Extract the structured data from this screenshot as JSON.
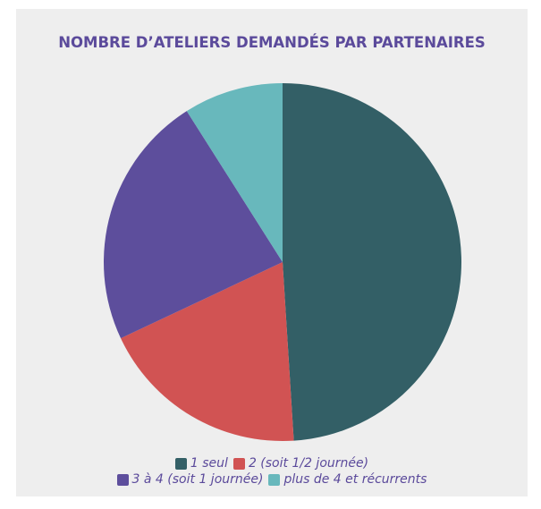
{
  "chart_data": {
    "type": "pie",
    "title": "NOMBRE D’ATELIERS DEMANDÉS PAR PARTENAIRES",
    "categories": [
      "1 seul",
      "2 (soit 1/2 journée)",
      "3 à 4 (soit 1 journée)",
      "plus de 4 et récurrents"
    ],
    "values": [
      49,
      19,
      23,
      9
    ],
    "colors": [
      "#335f66",
      "#d15353",
      "#5d4e9c",
      "#68b8bc"
    ],
    "legend": "bottom"
  }
}
